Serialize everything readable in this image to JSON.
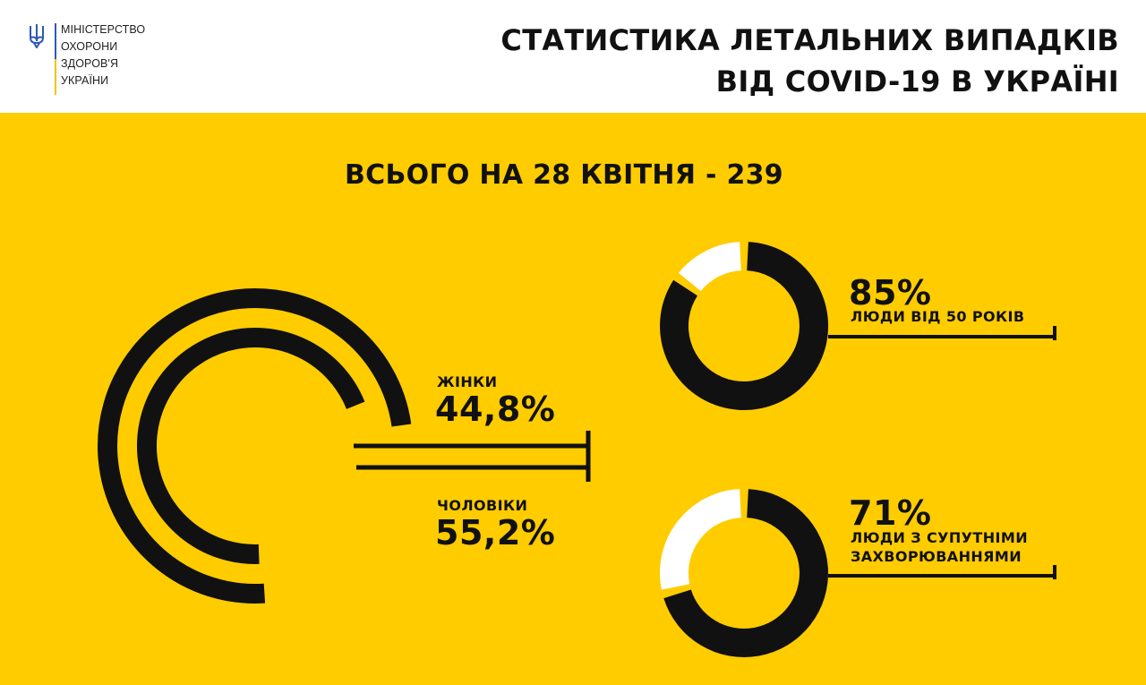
{
  "header": {
    "logo_lines": [
      "МІНІСТЕРСТВО",
      "ОХОРОНИ",
      "ЗДОРОВ'Я",
      "УКРАЇНИ"
    ],
    "title_lines": [
      "СТАТИСТИКА ЛЕТАЛЬНИХ ВИПАДКІВ",
      "ВІД COVID-19 В УКРАЇНІ"
    ]
  },
  "total": "ВСЬОГО НА 28 КВІТНЯ - 239",
  "colors": {
    "background": "#ffcc00",
    "ink": "#111111",
    "remainder": "#ffffff",
    "logo_blue": "#2f57b8",
    "logo_yellow": "#f5c400"
  },
  "chart_data": [
    {
      "type": "pie",
      "categories": [
        "ЖІНКИ",
        "ЧОЛОВІКИ"
      ],
      "values": [
        44.8,
        55.2
      ],
      "value_labels": [
        "44,8%",
        "55,2%"
      ]
    },
    {
      "type": "pie",
      "categories": [
        "ЛЮДИ ВІД 50 РОКІВ"
      ],
      "values": [
        85
      ],
      "value_labels": [
        "85%"
      ]
    },
    {
      "type": "pie",
      "categories": [
        "ЛЮДИ З СУПУТНІМИ ЗАХВОРЮВАННЯМИ"
      ],
      "values": [
        71
      ],
      "value_labels": [
        "71%"
      ]
    }
  ]
}
